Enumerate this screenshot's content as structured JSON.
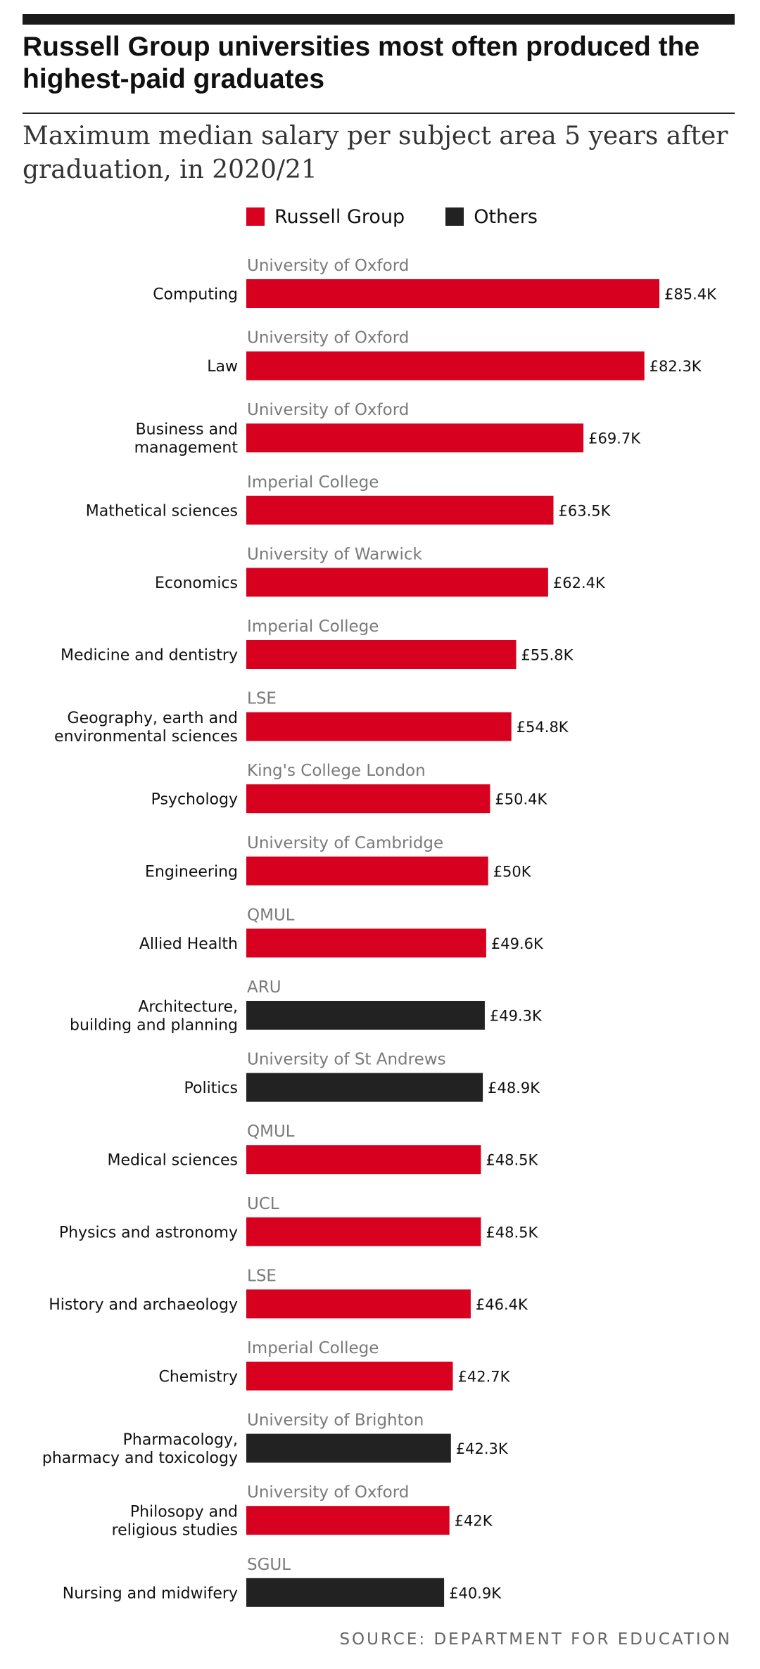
{
  "chart_data": {
    "type": "bar",
    "orientation": "horizontal",
    "title": "Russell Group universities most often produced the highest-paid graduates",
    "subtitle": "Maximum median salary per subject area 5 years after graduation, in 2020/21",
    "legend": {
      "placement": "top",
      "entries": [
        {
          "key": "russell",
          "name": "Russell Group",
          "color": "#d7001f"
        },
        {
          "key": "others",
          "name": "Others",
          "color": "#222222"
        }
      ]
    },
    "grid": false,
    "xlim": [
      0,
      85.4
    ],
    "categories": [
      "Computing",
      "Law",
      "Business and\nmanagement",
      "Mathetical sciences",
      "Economics",
      "Medicine and dentistry",
      "Geography, earth and\nenvironmental sciences",
      "Psychology",
      "Engineering",
      "Allied Health",
      "Architecture,\nbuilding and planning",
      "Politics",
      "Medical sciences",
      "Physics and astronomy",
      "History and archaeology",
      "Chemistry",
      "Pharmacology,\npharmacy and toxicology",
      "Philosopy and\nreligious studies",
      "Nursing and midwifery"
    ],
    "institutions": [
      "University of Oxford",
      "University of Oxford",
      "University of Oxford",
      "Imperial College",
      "University of Warwick",
      "Imperial College",
      "LSE",
      "King's College London",
      "University of Cambridge",
      "QMUL",
      "ARU",
      "University of St Andrews",
      "QMUL",
      "UCL",
      "LSE",
      "Imperial College",
      "University of Brighton",
      "University of Oxford",
      "SGUL"
    ],
    "values": [
      85.4,
      82.3,
      69.7,
      63.5,
      62.4,
      55.8,
      54.8,
      50.4,
      50,
      49.6,
      49.3,
      48.9,
      48.5,
      48.5,
      46.4,
      42.7,
      42.3,
      42,
      40.9
    ],
    "value_labels": [
      "£85.4K",
      "£82.3K",
      "£69.7K",
      "£63.5K",
      "£62.4K",
      "£55.8K",
      "£54.8K",
      "£50.4K",
      "£50K",
      "£49.6K",
      "£49.3K",
      "£48.9K",
      "£48.5K",
      "£48.5K",
      "£46.4K",
      "£42.7K",
      "£42.3K",
      "£42K",
      "£40.9K"
    ],
    "groups": [
      "russell",
      "russell",
      "russell",
      "russell",
      "russell",
      "russell",
      "russell",
      "russell",
      "russell",
      "russell",
      "others",
      "others",
      "russell",
      "russell",
      "russell",
      "russell",
      "others",
      "russell",
      "others"
    ],
    "unit": "£ thousands"
  },
  "source": "SOURCE: DEPARTMENT FOR EDUCATION"
}
